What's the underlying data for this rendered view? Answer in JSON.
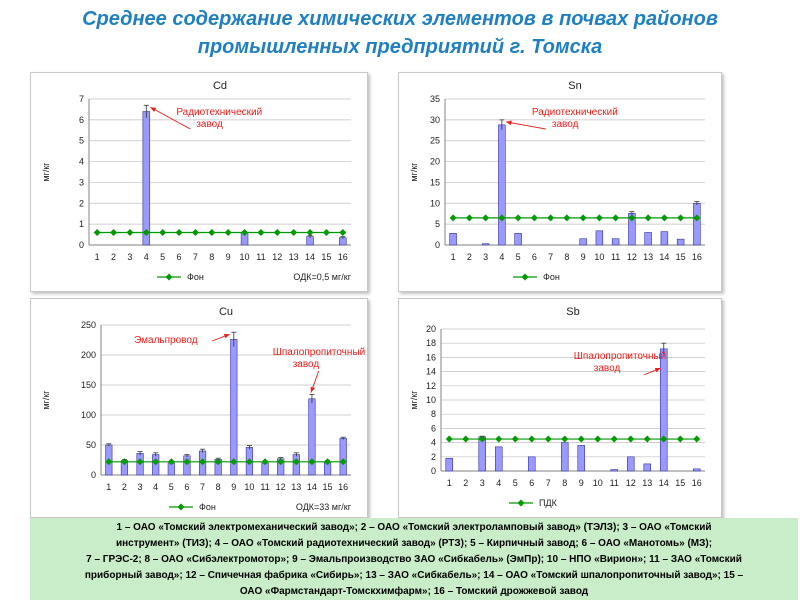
{
  "title_line1": "Среднее содержание химических элементов в почвах районов",
  "title_line2": "промышленных предприятий г. Томска",
  "footer_lines": [
    "1 – ОАО «Томский электромеханический завод»; 2 – ОАО «Томский электроламповый завод» (ТЭЛЗ); 3 – ОАО «Томский",
    "инструмент» (ТИЗ); 4 – ОАО «Томский радиотехнический завод» (РТЗ); 5 – Кирпичный завод; 6 – ОАО «Манотомь» (МЗ);",
    "7 – ГРЭС-2; 8 – ОАО «Сибэлектромотор»; 9 – Эмальпроизводство ЗАО «Сибкабель» (ЭмПр); 10 – НПО «Вирион»; 11 – ЗАО «Томский",
    "приборный завод»; 12 – Спичечная фабрика «Сибирь»; 13 – ЗАО «Сибкабель»; 14 – ОАО «Томский шпалопропиточный завод»; 15 –",
    "ОАО «Фармстандарт-Томскхимфарм»; 16 – Томский дрожжевой завод"
  ],
  "colors": {
    "bar": "#9999ff",
    "bar_border": "#333399",
    "line": "#009900",
    "title": "#1f7fc1",
    "annotation": "#e8201c",
    "footer_bg": "#c9ecc9"
  },
  "chart_data": [
    {
      "type": "bar",
      "title": "Cd",
      "ylabel": "мг/кг",
      "categories": [
        "1",
        "2",
        "3",
        "4",
        "5",
        "6",
        "7",
        "8",
        "9",
        "10",
        "11",
        "12",
        "13",
        "14",
        "15",
        "16"
      ],
      "yticks": [
        "0",
        "1",
        "2",
        "3",
        "4",
        "5",
        "6",
        "7"
      ],
      "ylim": [
        0,
        7
      ],
      "values": [
        0,
        0,
        0,
        6.4,
        0,
        0,
        0,
        0,
        0,
        0.6,
        0,
        0,
        0,
        0.4,
        0,
        0.35
      ],
      "errors": [
        0,
        0,
        0,
        0.3,
        0,
        0,
        0,
        0,
        0,
        0.05,
        0,
        0,
        0,
        0.05,
        0,
        0.05
      ],
      "reference_line": {
        "name": "Фон",
        "value": 0.6
      },
      "note": "ОДК=0,5 мг/кг",
      "annotations": [
        {
          "text": [
            "Радиотехнический",
            "завод"
          ],
          "target": 4
        }
      ],
      "grid": "horizontal",
      "legend": "bottom"
    },
    {
      "type": "bar",
      "title": "Sn",
      "ylabel": "мг/кг",
      "categories": [
        "1",
        "2",
        "3",
        "4",
        "5",
        "6",
        "7",
        "8",
        "9",
        "10",
        "11",
        "12",
        "13",
        "14",
        "15",
        "16"
      ],
      "yticks": [
        "0",
        "5",
        "10",
        "15",
        "20",
        "25",
        "30",
        "35"
      ],
      "ylim": [
        0,
        35
      ],
      "values": [
        2.8,
        0,
        0.3,
        28.8,
        2.8,
        0,
        0,
        0,
        1.5,
        3.4,
        1.5,
        7.6,
        3.0,
        3.2,
        1.4,
        10.0
      ],
      "errors": [
        0,
        0,
        0,
        1.2,
        0,
        0,
        0,
        0,
        0,
        0,
        0,
        0.4,
        0,
        0,
        0,
        0.4
      ],
      "reference_line": {
        "name": "Фон",
        "value": 6.5
      },
      "note": "",
      "annotations": [
        {
          "text": [
            "Радиотехнический",
            "завод"
          ],
          "target": 4
        }
      ],
      "grid": "horizontal",
      "legend": "bottom"
    },
    {
      "type": "bar",
      "title": "Cu",
      "ylabel": "мг/кг",
      "categories": [
        "1",
        "2",
        "3",
        "4",
        "5",
        "6",
        "7",
        "8",
        "9",
        "10",
        "11",
        "12",
        "13",
        "14",
        "15",
        "16"
      ],
      "yticks": [
        "0",
        "50",
        "100",
        "150",
        "200",
        "250"
      ],
      "ylim": [
        0,
        250
      ],
      "values": [
        50,
        24,
        36,
        34,
        20,
        32,
        40,
        26,
        226,
        46,
        20,
        27,
        34,
        127,
        22,
        61
      ],
      "errors": [
        2,
        2,
        3,
        3,
        2,
        2,
        3,
        2,
        12,
        3,
        2,
        2,
        3,
        7,
        2,
        2
      ],
      "reference_line": {
        "name": "Фон",
        "value": 22
      },
      "note": "ОДК=33 мг/кг",
      "annotations": [
        {
          "text": [
            "Эмальпровод"
          ],
          "target": 9
        },
        {
          "text": [
            "Шпалопропиточный",
            "завод"
          ],
          "target": 14
        }
      ],
      "grid": "horizontal",
      "legend": "bottom"
    },
    {
      "type": "bar",
      "title": "Sb",
      "ylabel": "мг/кг",
      "categories": [
        "1",
        "2",
        "3",
        "4",
        "5",
        "6",
        "7",
        "8",
        "9",
        "10",
        "11",
        "12",
        "13",
        "14",
        "15",
        "16"
      ],
      "yticks": [
        "0",
        "2",
        "4",
        "6",
        "8",
        "10",
        "12",
        "14",
        "16",
        "18",
        "20"
      ],
      "ylim": [
        0,
        20
      ],
      "values": [
        1.8,
        0,
        4.8,
        3.4,
        0,
        2.0,
        0,
        4.0,
        3.6,
        0,
        0.2,
        2.0,
        1.0,
        17.2,
        0,
        0.3
      ],
      "errors": [
        0,
        0,
        0.1,
        0,
        0,
        0,
        0,
        0,
        0,
        0,
        0,
        0,
        0,
        0.8,
        0,
        0
      ],
      "reference_line": {
        "name": "ПДК",
        "value": 4.5
      },
      "note": "",
      "annotations": [
        {
          "text": [
            "Шпалопропиточный",
            "завод"
          ],
          "target": 14
        }
      ],
      "grid": "horizontal",
      "legend": "bottom"
    }
  ]
}
